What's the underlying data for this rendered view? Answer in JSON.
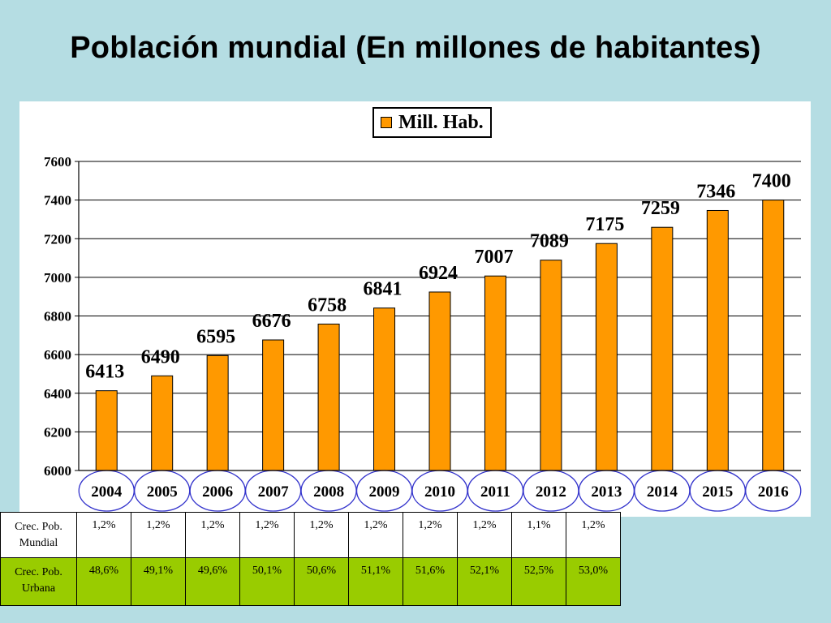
{
  "title": "Población mundial (En millones de habitantes)",
  "chart_data": {
    "type": "bar",
    "categories": [
      "2004",
      "2005",
      "2006",
      "2007",
      "2008",
      "2009",
      "2010",
      "2011",
      "2012",
      "2013",
      "2014",
      "2015",
      "2016"
    ],
    "series": [
      {
        "name": "Mill. Hab.",
        "values": [
          6413,
          6490,
          6595,
          6676,
          6758,
          6841,
          6924,
          7007,
          7089,
          7175,
          7259,
          7346,
          7400
        ]
      }
    ],
    "data_labels": [
      "6413",
      "6490",
      "6595",
      "6676",
      "6758",
      "6841",
      "6924",
      "7007",
      "7089",
      "7175",
      "7259",
      "7346",
      "7400"
    ],
    "ylim": [
      6000,
      7600
    ],
    "yticks": [
      6000,
      6200,
      6400,
      6600,
      6800,
      7000,
      7200,
      7400,
      7600
    ],
    "grid": true,
    "legend_position": "top-center",
    "colors": {
      "bar": "#ff9900",
      "bar_border": "#000000",
      "year_ellipse": "#3333cc"
    }
  },
  "table": {
    "rows": [
      {
        "label_line1": "Crec. Pob.",
        "label_line2": "Mundial",
        "values": [
          "1,2%",
          "1,2%",
          "1,2%",
          "1,2%",
          "1,2%",
          "1,2%",
          "1,2%",
          "1,2%",
          "1,1%",
          "1,2%"
        ]
      },
      {
        "label_line1": "Crec. Pob.",
        "label_line2": "Urbana",
        "values": [
          "48,6%",
          "49,1%",
          "49,6%",
          "50,1%",
          "50,6%",
          "51,1%",
          "51,6%",
          "52,1%",
          "52,5%",
          "53,0%"
        ]
      }
    ],
    "colors": {
      "mundial_bg": "#ffffff",
      "urbana_bg": "#99cc00"
    }
  }
}
